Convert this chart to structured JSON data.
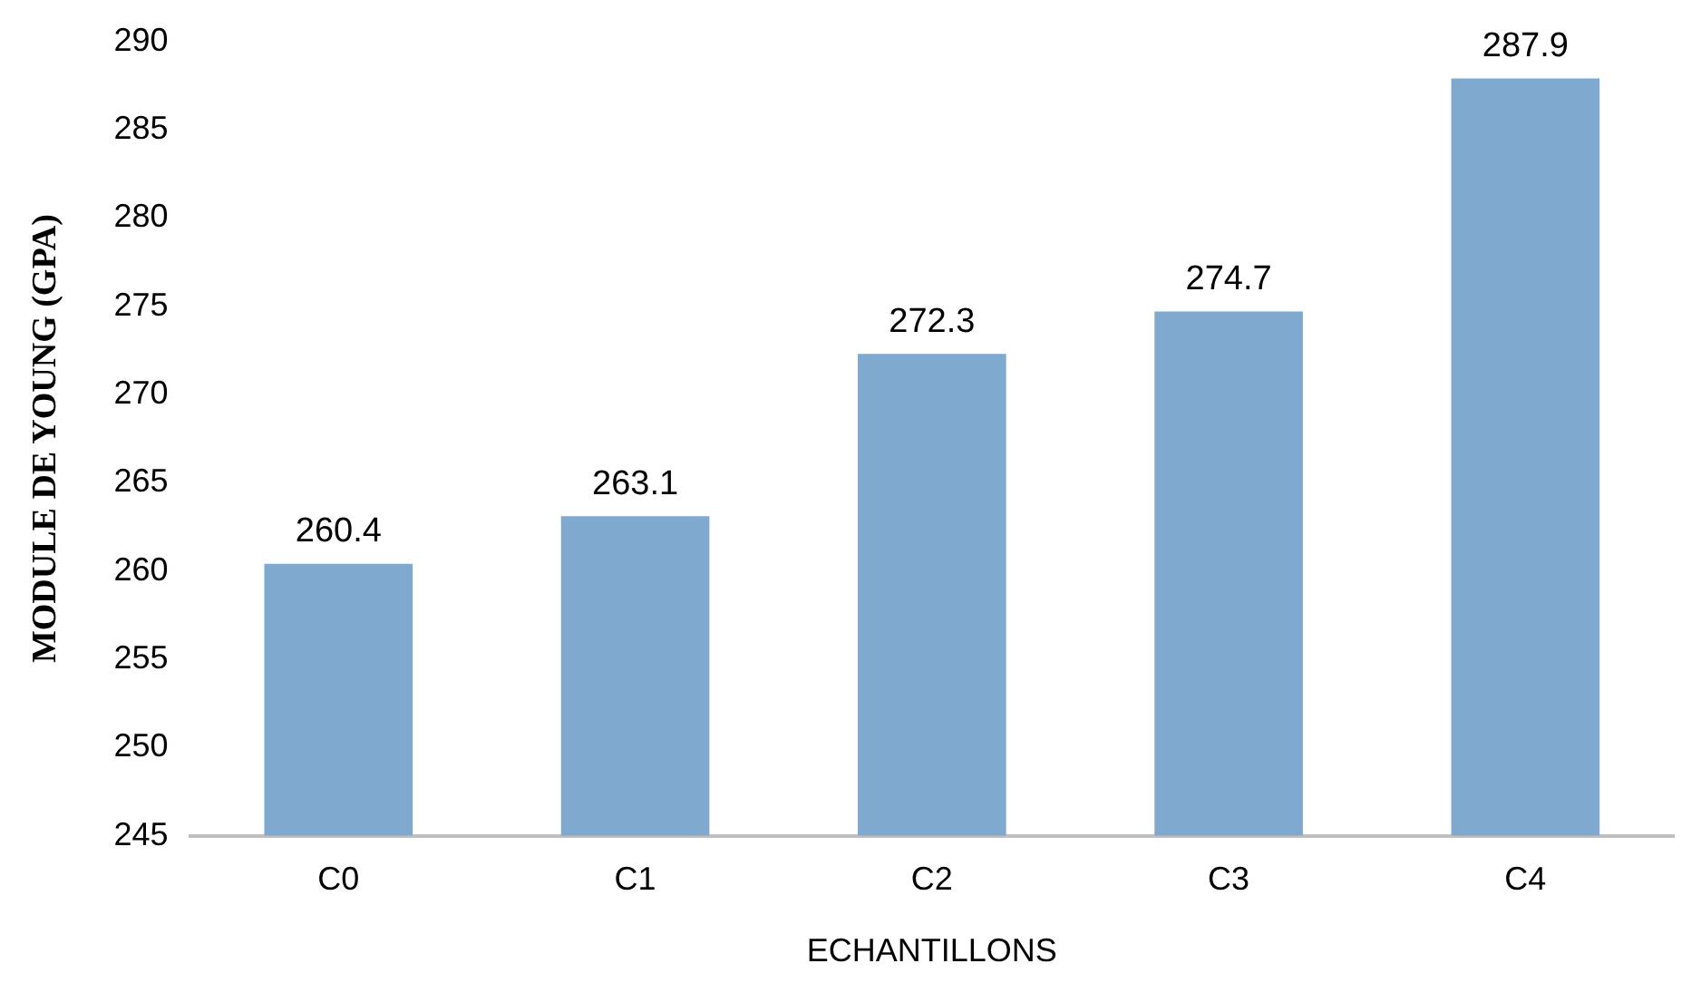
{
  "chart_data": {
    "type": "bar",
    "xlabel": "ECHANTILLONS",
    "ylabel": "MODULE DE YOUNG (GPA)",
    "categories": [
      "C0",
      "C1",
      "C2",
      "C3",
      "C4"
    ],
    "values": [
      260.4,
      263.1,
      272.3,
      274.7,
      287.9
    ],
    "color": "#80a9d0",
    "ylim": [
      245,
      290
    ],
    "yticks": [
      245,
      250,
      255,
      260,
      265,
      270,
      275,
      280,
      285,
      290
    ],
    "grid": false,
    "legend": false,
    "data_labels": true
  }
}
